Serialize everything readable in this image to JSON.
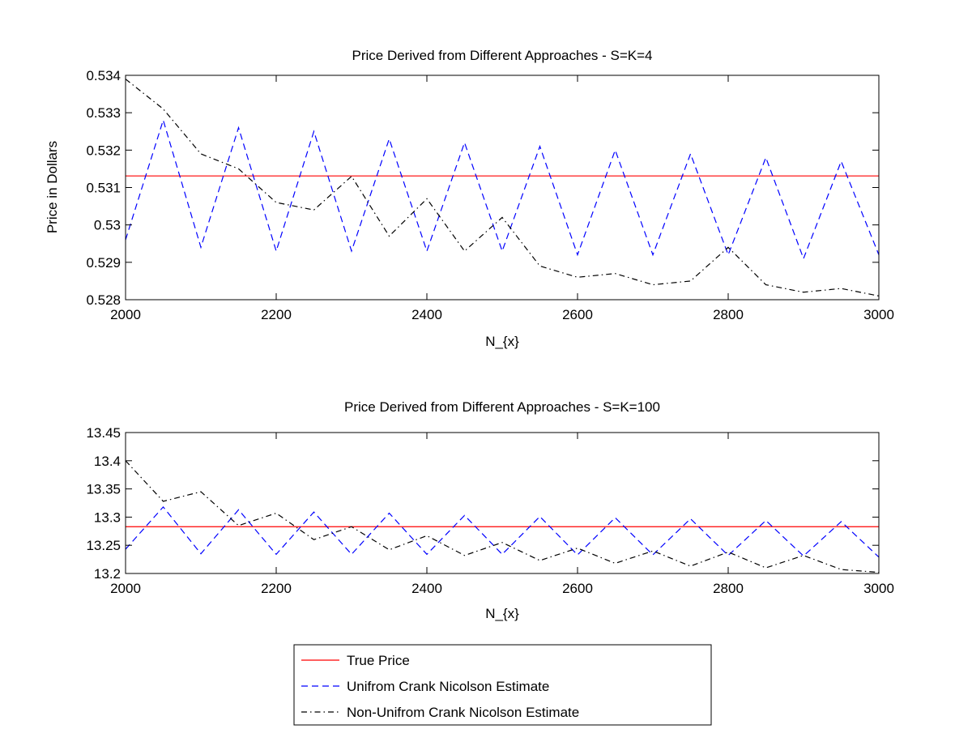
{
  "chart_data": [
    {
      "type": "line",
      "title": "Price Derived from Different Approaches - S=K=4",
      "xlabel": "N_{x}",
      "ylabel": "Price in Dollars",
      "xlim": [
        2000,
        3000
      ],
      "ylim": [
        0.528,
        0.534
      ],
      "xticks": [
        "2000",
        "2200",
        "2400",
        "2600",
        "2800",
        "3000"
      ],
      "yticks": [
        "0.528",
        "0.529",
        "0.53",
        "0.531",
        "0.532",
        "0.533",
        "0.534"
      ],
      "ytick_values": [
        0.528,
        0.529,
        0.53,
        0.531,
        0.532,
        0.533,
        0.534
      ],
      "grid": false,
      "series": [
        {
          "name": "True Price",
          "color": "#ff0000",
          "style": "solid",
          "x": [
            2000,
            3000
          ],
          "y": [
            0.53131,
            0.53131
          ]
        },
        {
          "name": "Unifrom Crank Nicolson Estimate",
          "color": "#0000ff",
          "style": "dashed",
          "x": [
            2000,
            2050,
            2100,
            2150,
            2200,
            2250,
            2300,
            2350,
            2400,
            2450,
            2500,
            2550,
            2600,
            2650,
            2700,
            2750,
            2800,
            2850,
            2900,
            2950,
            3000
          ],
          "y": [
            0.5296,
            0.5328,
            0.5294,
            0.5326,
            0.5293,
            0.5325,
            0.5293,
            0.5323,
            0.5293,
            0.5322,
            0.5293,
            0.5321,
            0.5292,
            0.532,
            0.5292,
            0.5319,
            0.5292,
            0.5318,
            0.5291,
            0.5317,
            0.5292
          ]
        },
        {
          "name": "Non-Unifrom Crank Nicolson Estimate",
          "color": "#000000",
          "style": "dashdot",
          "x": [
            2000,
            2050,
            2100,
            2150,
            2200,
            2250,
            2300,
            2350,
            2400,
            2450,
            2500,
            2550,
            2600,
            2650,
            2700,
            2750,
            2800,
            2850,
            2900,
            2950,
            3000
          ],
          "y": [
            0.5339,
            0.5331,
            0.5319,
            0.5315,
            0.5306,
            0.5304,
            0.5313,
            0.5297,
            0.5307,
            0.5293,
            0.5302,
            0.5289,
            0.5286,
            0.5287,
            0.5284,
            0.5285,
            0.5294,
            0.5284,
            0.5282,
            0.5283,
            0.5281
          ]
        }
      ]
    },
    {
      "type": "line",
      "title": "Price Derived from Different Approaches - S=K=100",
      "xlabel": "N_{x}",
      "ylabel": "",
      "xlim": [
        2000,
        3000
      ],
      "ylim": [
        13.2,
        13.45
      ],
      "xticks": [
        "2000",
        "2200",
        "2400",
        "2600",
        "2800",
        "3000"
      ],
      "yticks": [
        "13.2",
        "13.25",
        "13.3",
        "13.35",
        "13.4",
        "13.45"
      ],
      "ytick_values": [
        13.2,
        13.25,
        13.3,
        13.35,
        13.4,
        13.45
      ],
      "grid": false,
      "series": [
        {
          "name": "True Price",
          "color": "#ff0000",
          "style": "solid",
          "x": [
            2000,
            3000
          ],
          "y": [
            13.283,
            13.283
          ]
        },
        {
          "name": "Unifrom Crank Nicolson Estimate",
          "color": "#0000ff",
          "style": "dashed",
          "x": [
            2000,
            2050,
            2100,
            2150,
            2200,
            2250,
            2300,
            2350,
            2400,
            2450,
            2500,
            2550,
            2600,
            2650,
            2700,
            2750,
            2800,
            2850,
            2900,
            2950,
            3000
          ],
          "y": [
            13.243,
            13.318,
            13.235,
            13.313,
            13.234,
            13.309,
            13.234,
            13.307,
            13.234,
            13.303,
            13.234,
            13.301,
            13.233,
            13.299,
            13.233,
            13.297,
            13.232,
            13.294,
            13.231,
            13.292,
            13.229
          ]
        },
        {
          "name": "Non-Unifrom Crank Nicolson Estimate",
          "color": "#000000",
          "style": "dashdot",
          "x": [
            2000,
            2050,
            2100,
            2150,
            2200,
            2250,
            2300,
            2350,
            2400,
            2450,
            2500,
            2550,
            2600,
            2650,
            2700,
            2750,
            2800,
            2850,
            2900,
            2950,
            3000
          ],
          "y": [
            13.4,
            13.328,
            13.345,
            13.285,
            13.307,
            13.26,
            13.283,
            13.242,
            13.267,
            13.232,
            13.255,
            13.223,
            13.245,
            13.218,
            13.24,
            13.213,
            13.238,
            13.21,
            13.232,
            13.207,
            13.202
          ]
        }
      ]
    }
  ],
  "legend": {
    "placement": "bottom-center",
    "entries": [
      {
        "label": "True Price",
        "color": "#ff0000",
        "style": "solid"
      },
      {
        "label": "Unifrom Crank Nicolson Estimate",
        "color": "#0000ff",
        "style": "dashed"
      },
      {
        "label": "Non-Unifrom Crank Nicolson Estimate",
        "color": "#000000",
        "style": "dashdot"
      }
    ]
  }
}
